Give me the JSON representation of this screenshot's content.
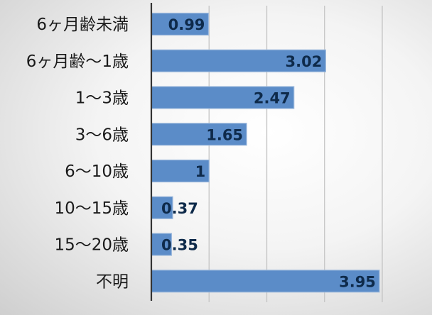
{
  "chart_data": {
    "type": "bar",
    "orientation": "horizontal",
    "categories": [
      "6ヶ月齢未満",
      "6ヶ月齢～1歳",
      "1～3歳",
      "3～6歳",
      "6～10歳",
      "10～15歳",
      "15～20歳",
      "不明"
    ],
    "values": [
      0.99,
      3.02,
      2.47,
      1.65,
      1,
      0.37,
      0.35,
      3.95
    ],
    "value_labels": [
      "0.99",
      "3.02",
      "2.47",
      "1.65",
      "1",
      "0.37",
      "0.35",
      "3.95"
    ],
    "xlim": [
      0,
      4
    ],
    "xgrid": true,
    "bar_color": "#5b8cc8",
    "bar_edge_color": "#9db9dc"
  }
}
